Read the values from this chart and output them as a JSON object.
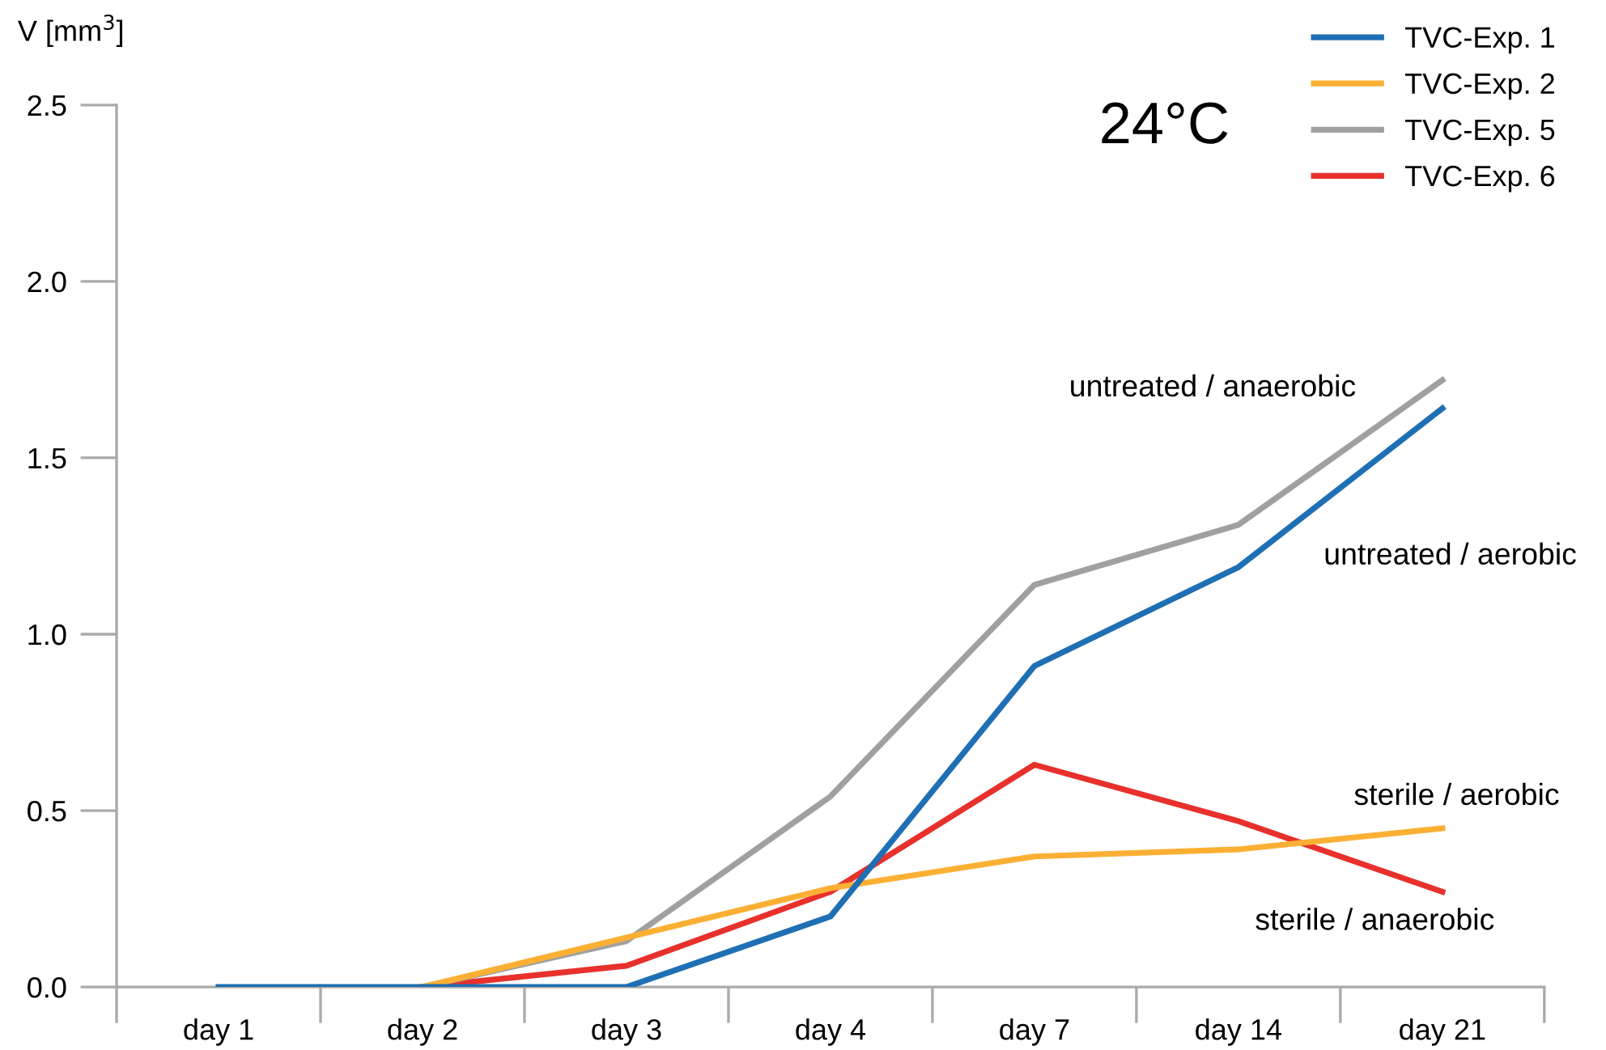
{
  "chart_data": {
    "type": "line",
    "ylabel": "V [mm$^{3}$]",
    "categories": [
      "day 1",
      "day 2",
      "day 3",
      "day 4",
      "day 7",
      "day 14",
      "day 21"
    ],
    "series": [
      {
        "name": "TVC-Exp. 1",
        "color": "#1f6fb4",
        "values": [
          0,
          0,
          0,
          0.2,
          0.91,
          1.19,
          1.64
        ]
      },
      {
        "name": "TVC-Exp. 2",
        "color": "#fbb034",
        "values": [
          null,
          0,
          0.14,
          0.28,
          0.37,
          0.39,
          0.45
        ]
      },
      {
        "name": "TVC-Exp. 5",
        "color": "#a0a0a0",
        "values": [
          null,
          0,
          0.13,
          0.54,
          1.14,
          1.31,
          1.72
        ]
      },
      {
        "name": "TVC-Exp. 6",
        "color": "#e8302c",
        "values": [
          null,
          0,
          0.06,
          0.27,
          0.63,
          0.47,
          0.27
        ]
      }
    ],
    "ylim": [
      0,
      2.5
    ],
    "yticks": [
      {
        "value": 0,
        "label": "0.0"
      },
      0.5,
      {
        "value": 1,
        "label": "1.0"
      },
      1.5,
      {
        "value": 2,
        "label": "2.0"
      },
      2.5
    ],
    "annotations": [
      "24°C",
      "untreated / anaerobic",
      "untreated / aerobic",
      "sterile / aerobic",
      "sterile / anaerobic"
    ],
    "legend": "top right",
    "grid": false,
    "marker": "none",
    "line_style": "solid"
  }
}
